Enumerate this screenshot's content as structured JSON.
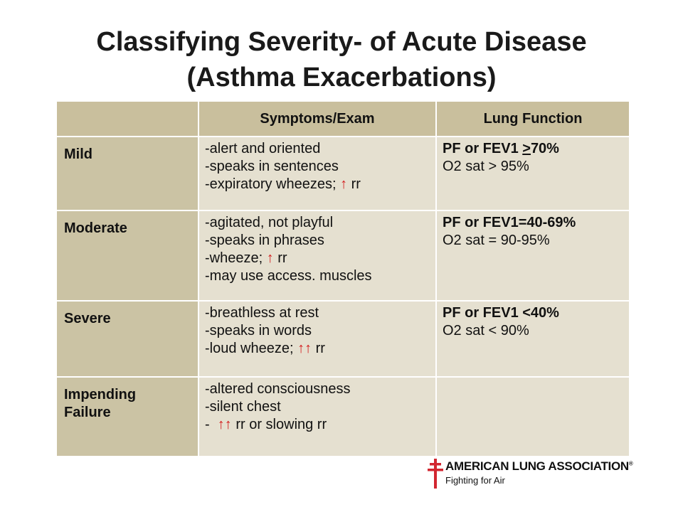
{
  "slide": {
    "title_line1": "Classifying Severity- of Acute Disease",
    "title_line2": "(Asthma Exacerbations)"
  },
  "table": {
    "headers": [
      "",
      "Symptoms/Exam",
      "Lung Function"
    ],
    "rows": [
      {
        "label": "Mild",
        "symptoms": [
          {
            "text": "-alert and oriented"
          },
          {
            "text": "-speaks in sentences"
          },
          {
            "text": "-expiratory wheezes; ",
            "arrow": "↑",
            "after": " rr"
          }
        ],
        "lung_bold_pre": "PF or FEV1 ",
        "lung_bold_under": ">",
        "lung_bold_post": "70%",
        "lung_normal": "O2 sat > 95%"
      },
      {
        "label": "Moderate",
        "symptoms": [
          {
            "text": "-agitated, not playful"
          },
          {
            "text": "-speaks in phrases"
          },
          {
            "text": "-wheeze; ",
            "arrow": "↑",
            "after": " rr"
          },
          {
            "text": "-may use access. muscles"
          }
        ],
        "lung_bold_pre": "PF or FEV1=40-69%",
        "lung_normal": "O2 sat = 90-95%"
      },
      {
        "label": "Severe",
        "symptoms": [
          {
            "text": "-breathless at rest"
          },
          {
            "text": "-speaks in words"
          },
          {
            "text": "-loud wheeze; ",
            "arrow": "↑↑",
            "after": " rr"
          }
        ],
        "lung_bold_pre": "PF or FEV1 <40%",
        "lung_normal": "O2 sat < 90%"
      },
      {
        "label_line1": "Impending",
        "label_line2": "Failure",
        "symptoms": [
          {
            "text": "-altered consciousness"
          },
          {
            "text": "-silent chest"
          },
          {
            "text": "-  ",
            "arrow": "↑↑",
            "after": " rr or slowing rr"
          }
        ]
      }
    ]
  },
  "logo": {
    "name": "AMERICAN LUNG ASSOCIATION",
    "registered": "®",
    "tagline": "Fighting for Air",
    "cross_color": "#d22630"
  },
  "colors": {
    "header_bg": "#c9bf9d",
    "label_bg": "#cbc3a4",
    "cell_bg": "#e5e0d0",
    "arrow": "#d42020"
  }
}
